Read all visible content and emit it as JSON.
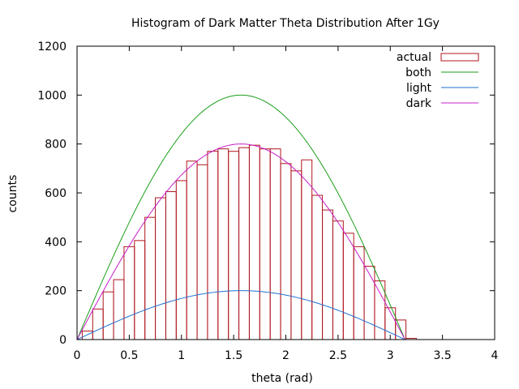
{
  "chart_data": {
    "type": "bar",
    "title": "Histogram of Dark Matter Theta Distribution After 1Gy",
    "xlabel": "theta (rad)",
    "ylabel": "counts",
    "xlim": [
      0,
      4
    ],
    "ylim": [
      0,
      1200
    ],
    "xticks": [
      "0",
      "0.5",
      "1",
      "1.5",
      "2",
      "2.5",
      "3",
      "3.5",
      "4"
    ],
    "yticks": [
      "0",
      "200",
      "400",
      "600",
      "800",
      "1000",
      "1200"
    ],
    "grid": false,
    "legend_position": "top-right",
    "histogram": {
      "name": "actual",
      "bin_width": 0.1,
      "bin_start": [
        0.05,
        0.15,
        0.25,
        0.35,
        0.45,
        0.55,
        0.65,
        0.75,
        0.85,
        0.95,
        1.05,
        1.15,
        1.25,
        1.35,
        1.45,
        1.55,
        1.65,
        1.75,
        1.85,
        1.95,
        2.05,
        2.15,
        2.25,
        2.35,
        2.45,
        2.55,
        2.65,
        2.75,
        2.85,
        2.95,
        3.05,
        3.15
      ],
      "counts": [
        35,
        125,
        195,
        245,
        380,
        405,
        500,
        580,
        605,
        650,
        730,
        715,
        770,
        780,
        770,
        785,
        795,
        780,
        780,
        720,
        690,
        735,
        590,
        530,
        485,
        435,
        380,
        300,
        240,
        130,
        80,
        5
      ],
      "color": "#b0161f"
    },
    "curves": [
      {
        "name": "both",
        "amplitude": 1000,
        "color": "#1a9e1a"
      },
      {
        "name": "light",
        "amplitude": 200,
        "color": "#1f6fd0"
      },
      {
        "name": "dark",
        "amplitude": 800,
        "color": "#c81ec8"
      }
    ]
  }
}
